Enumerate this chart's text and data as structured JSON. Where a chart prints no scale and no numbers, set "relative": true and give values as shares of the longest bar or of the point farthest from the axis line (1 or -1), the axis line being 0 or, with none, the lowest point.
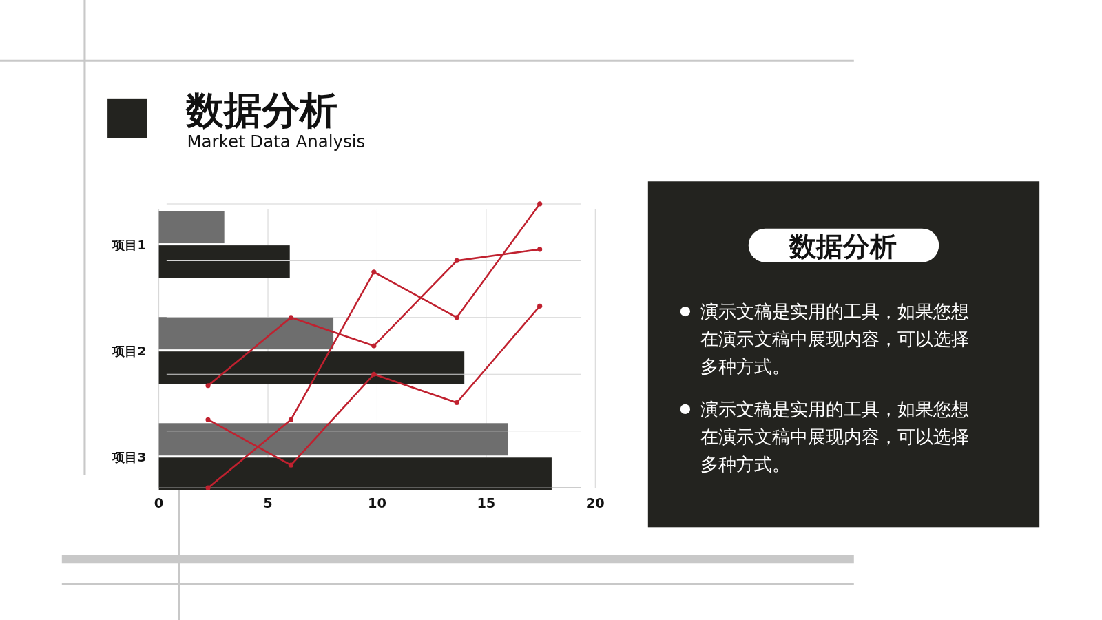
{
  "chart_data": [
    {
      "type": "bar",
      "orientation": "horizontal",
      "title": "数据分析",
      "subtitle": "Market Data Analysis",
      "categories": [
        "项目1",
        "项目2",
        "项目3"
      ],
      "series": [
        {
          "color": "#6e6e6e",
          "values": [
            3,
            8,
            16
          ]
        },
        {
          "color": "#23231f",
          "values": [
            6,
            14,
            18
          ]
        }
      ],
      "xlim": [
        0,
        20
      ],
      "xticks": [
        0,
        5,
        10,
        15,
        20
      ],
      "grid": "x"
    },
    {
      "type": "line",
      "relative": true,
      "categories": [
        null,
        null,
        null,
        null,
        null
      ],
      "marker": "circle",
      "grid": "y",
      "series": [
        {
          "color": "#c0212f",
          "values": [
            0.36,
            0.6,
            0.5,
            0.8,
            0.84
          ]
        },
        {
          "color": "#c0212f",
          "values": [
            0.24,
            0.08,
            0.4,
            0.3,
            0.64
          ]
        },
        {
          "color": "#c0212f",
          "values": [
            0,
            0.24,
            0.76,
            0.6,
            1
          ]
        }
      ]
    },
    {
      "type": "other",
      "title": "数据分析",
      "annotations": [
        "演示文稿是实用的工具，如果您想在演示文稿中展现内容，可以选择多种方式。",
        "演示文稿是实用的工具，如果您想在演示文稿中展现内容，可以选择多种方式。"
      ]
    }
  ]
}
